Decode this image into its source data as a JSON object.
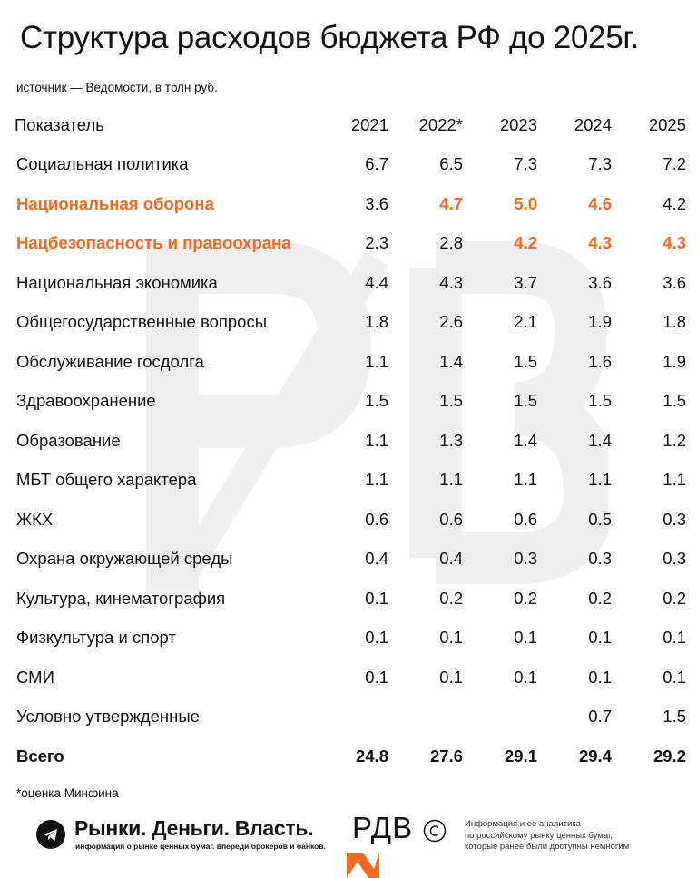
{
  "title": "Структура расходов бюджета РФ до 2025г.",
  "source": "источник —  Ведомости, в трлн руб.",
  "colors": {
    "accent": "#f26a21",
    "text": "#111111",
    "watermark": "#efefef"
  },
  "chart_data": {
    "type": "table",
    "title": "Структура расходов бюджета РФ до 2025г.",
    "unit": "трлн руб.",
    "header": [
      "Показатель",
      "2021",
      "2022*",
      "2023",
      "2024",
      "2025"
    ],
    "highlight_color": "#f26a21",
    "rows": [
      {
        "name": "Социальная политика",
        "highlight_name": false,
        "values": [
          "6.7",
          "6.5",
          "7.3",
          "7.3",
          "7.2"
        ],
        "highlight": [
          false,
          false,
          false,
          false,
          false
        ]
      },
      {
        "name": "Национальная оборона",
        "highlight_name": true,
        "values": [
          "3.6",
          "4.7",
          "5.0",
          "4.6",
          "4.2"
        ],
        "highlight": [
          false,
          true,
          true,
          true,
          false
        ]
      },
      {
        "name": "Нацбезопасность и правоохрана",
        "highlight_name": true,
        "values": [
          "2.3",
          "2.8",
          "4.2",
          "4.3",
          "4.3"
        ],
        "highlight": [
          false,
          false,
          true,
          true,
          true
        ]
      },
      {
        "name": "Национальная экономика",
        "highlight_name": false,
        "values": [
          "4.4",
          "4.3",
          "3.7",
          "3.6",
          "3.6"
        ],
        "highlight": [
          false,
          false,
          false,
          false,
          false
        ]
      },
      {
        "name": "Общегосударственные вопросы",
        "highlight_name": false,
        "values": [
          "1.8",
          "2.6",
          "2.1",
          "1.9",
          "1.8"
        ],
        "highlight": [
          false,
          false,
          false,
          false,
          false
        ]
      },
      {
        "name": "Обслуживание госдолга",
        "highlight_name": false,
        "values": [
          "1.1",
          "1.4",
          "1.5",
          "1.6",
          "1.9"
        ],
        "highlight": [
          false,
          false,
          false,
          false,
          false
        ]
      },
      {
        "name": "Здравоохранение",
        "highlight_name": false,
        "values": [
          "1.5",
          "1.5",
          "1.5",
          "1.5",
          "1.5"
        ],
        "highlight": [
          false,
          false,
          false,
          false,
          false
        ]
      },
      {
        "name": "Образование",
        "highlight_name": false,
        "values": [
          "1.1",
          "1.3",
          "1.4",
          "1.4",
          "1.2"
        ],
        "highlight": [
          false,
          false,
          false,
          false,
          false
        ]
      },
      {
        "name": "МБТ общего характера",
        "highlight_name": false,
        "values": [
          "1.1",
          "1.1",
          "1.1",
          "1.1",
          "1.1"
        ],
        "highlight": [
          false,
          false,
          false,
          false,
          false
        ]
      },
      {
        "name": "ЖКХ",
        "highlight_name": false,
        "values": [
          "0.6",
          "0.6",
          "0.6",
          "0.5",
          "0.3"
        ],
        "highlight": [
          false,
          false,
          false,
          false,
          false
        ]
      },
      {
        "name": "Охрана окружающей среды",
        "highlight_name": false,
        "values": [
          "0.4",
          "0.4",
          "0.3",
          "0.3",
          "0.3"
        ],
        "highlight": [
          false,
          false,
          false,
          false,
          false
        ]
      },
      {
        "name": "Культура, кинематография",
        "highlight_name": false,
        "values": [
          "0.1",
          "0.2",
          "0.2",
          "0.2",
          "0.2"
        ],
        "highlight": [
          false,
          false,
          false,
          false,
          false
        ]
      },
      {
        "name": "Физкультура и спорт",
        "highlight_name": false,
        "values": [
          "0.1",
          "0.1",
          "0.1",
          "0.1",
          "0.1"
        ],
        "highlight": [
          false,
          false,
          false,
          false,
          false
        ]
      },
      {
        "name": "СМИ",
        "highlight_name": false,
        "values": [
          "0.1",
          "0.1",
          "0.1",
          "0.1",
          "0.1"
        ],
        "highlight": [
          false,
          false,
          false,
          false,
          false
        ]
      },
      {
        "name": "Условно утвержденные",
        "highlight_name": false,
        "values": [
          "",
          "",
          "",
          "0.7",
          "1.5"
        ],
        "highlight": [
          false,
          false,
          false,
          false,
          false
        ]
      }
    ],
    "total": {
      "name": "Всего",
      "values": [
        "24.8",
        "27.6",
        "29.1",
        "29.4",
        "29.2"
      ]
    }
  },
  "footnote": "*оценка Минфина",
  "footer": {
    "icon": "telegram-icon",
    "brand": "Рынки. Деньги. Власть.",
    "brand_subtitle": "информация о рынке ценных бумаг. впереди брокеров и банков.",
    "logo": "РДВ",
    "logo_mark": "©",
    "info_lines": [
      "Информация и её аналитика",
      "по российскому рынку ценных бумаг,",
      "которые ранее были доступны немногим"
    ]
  }
}
